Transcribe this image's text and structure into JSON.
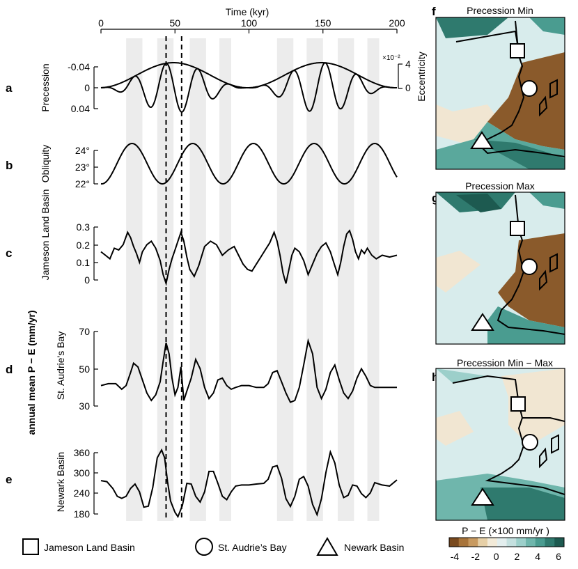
{
  "figure": {
    "panel_letters": {
      "a": "a",
      "b": "b",
      "c": "c",
      "d": "d",
      "e": "e",
      "f": "f",
      "g": "g",
      "h": "h"
    },
    "common_ylabel": "annual mean P − E (mm/yr)"
  },
  "chart_data": [
    {
      "type": "line",
      "panel": "a",
      "title": "",
      "xlabel": "Time (kyr)",
      "xlim": [
        0,
        200
      ],
      "xticks": [
        "0",
        "50",
        "100",
        "150",
        "200"
      ],
      "ylabel": "Precession",
      "yticks": [
        "-0.04",
        "0",
        "0.04"
      ],
      "ylim": [
        0.05,
        -0.05
      ],
      "right_axis": {
        "label": "Eccentricity",
        "multiplier": "×10⁻²",
        "ticks": [
          "4",
          "0"
        ]
      },
      "series": [
        {
          "kind": "precession",
          "period_kyr": 21,
          "amplitude_max": 0.048
        },
        {
          "kind": "eccentricity_envelope",
          "period_kyr": 100,
          "range": [
            0,
            0.048
          ]
        }
      ],
      "shaded_bands_kyr": [
        [
          17,
          28
        ],
        [
          38,
          49
        ],
        [
          60,
          71
        ],
        [
          80,
          88
        ],
        [
          119,
          130
        ],
        [
          139,
          150
        ],
        [
          160,
          171
        ],
        [
          180,
          188
        ]
      ],
      "dashed_lines_kyr": [
        44,
        54.5
      ]
    },
    {
      "type": "line",
      "panel": "b",
      "ylabel": "Obliquity",
      "yticks": [
        "24°",
        "23°",
        "22°"
      ],
      "ylim": [
        21.9,
        24.6
      ],
      "series": [
        {
          "kind": "obliquity",
          "period_kyr": 41,
          "min": 22.0,
          "max": 24.5,
          "peak_kyr": [
            21,
            62,
            103,
            144,
            185
          ]
        }
      ]
    },
    {
      "type": "line",
      "panel": "c",
      "ylabel": "Jameson Land Basin",
      "yticks": [
        "0.3",
        "0.2",
        "0.1",
        "0"
      ],
      "ylim": [
        -0.02,
        0.32
      ],
      "series": [
        {
          "name": "Jameson Land Basin",
          "x": [
            0,
            3,
            6,
            9,
            12,
            15,
            18,
            20,
            22,
            24,
            26,
            28,
            31,
            34,
            37,
            40,
            42,
            44,
            46,
            48,
            50,
            52,
            54,
            56,
            58,
            60,
            63,
            66,
            70,
            74,
            78,
            82,
            86,
            90,
            93,
            96,
            99,
            102,
            105,
            108,
            111,
            114,
            117,
            119,
            121,
            123,
            125,
            127,
            129,
            131,
            134,
            137,
            140,
            143,
            146,
            149,
            152,
            155,
            158,
            160,
            162,
            164,
            166,
            168,
            170,
            172,
            174,
            176,
            178,
            180,
            183,
            186,
            190,
            195,
            200
          ],
          "y": [
            0.16,
            0.14,
            0.12,
            0.18,
            0.17,
            0.2,
            0.27,
            0.24,
            0.19,
            0.15,
            0.1,
            0.16,
            0.2,
            0.22,
            0.18,
            0.11,
            0.03,
            -0.02,
            0.06,
            0.12,
            0.17,
            0.22,
            0.27,
            0.22,
            0.13,
            0.06,
            0.02,
            0.08,
            0.19,
            0.22,
            0.2,
            0.14,
            0.17,
            0.19,
            0.14,
            0.09,
            0.06,
            0.05,
            0.09,
            0.13,
            0.17,
            0.21,
            0.27,
            0.22,
            0.14,
            0.04,
            -0.02,
            0.06,
            0.14,
            0.18,
            0.16,
            0.11,
            0.03,
            0.09,
            0.15,
            0.19,
            0.21,
            0.16,
            0.08,
            0.03,
            0.1,
            0.19,
            0.26,
            0.28,
            0.23,
            0.16,
            0.12,
            0.17,
            0.15,
            0.18,
            0.14,
            0.12,
            0.14,
            0.13,
            0.14
          ]
        }
      ]
    },
    {
      "type": "line",
      "panel": "d",
      "ylabel": "St. Audrie's Bay",
      "yticks": [
        "70",
        "50",
        "30"
      ],
      "ylim": [
        30,
        70
      ],
      "series": [
        {
          "name": "St. Audrie's Bay",
          "x": [
            0,
            5,
            10,
            14,
            17,
            20,
            22,
            25,
            28,
            31,
            34,
            37,
            40,
            42,
            44,
            46,
            48,
            50,
            52,
            54,
            56,
            58,
            61,
            64,
            67,
            70,
            73,
            76,
            79,
            82,
            85,
            88,
            91,
            95,
            100,
            105,
            110,
            113,
            116,
            119,
            122,
            125,
            128,
            131,
            134,
            137,
            140,
            143,
            146,
            149,
            152,
            155,
            158,
            161,
            164,
            167,
            170,
            173,
            176,
            179,
            182,
            185,
            190,
            195,
            200
          ],
          "y": [
            41,
            42,
            42,
            39,
            41,
            48,
            53,
            51,
            44,
            37,
            33,
            36,
            43,
            54,
            64,
            58,
            45,
            36,
            40,
            51,
            33,
            38,
            45,
            55,
            50,
            40,
            34,
            37,
            44,
            45,
            41,
            39,
            40,
            41,
            41,
            40,
            40,
            42,
            48,
            49,
            43,
            37,
            32,
            33,
            40,
            52,
            65,
            58,
            40,
            34,
            39,
            48,
            52,
            44,
            37,
            34,
            38,
            45,
            50,
            46,
            41,
            40,
            40,
            40,
            40
          ]
        }
      ]
    },
    {
      "type": "line",
      "panel": "e",
      "ylabel": "Newark Basin",
      "yticks": [
        "360",
        "300",
        "240",
        "180"
      ],
      "ylim": [
        170,
        375
      ],
      "series": [
        {
          "name": "Newark Basin",
          "x": [
            0,
            4,
            8,
            11,
            14,
            17,
            20,
            23,
            26,
            29,
            32,
            35,
            38,
            41,
            43,
            45,
            47,
            50,
            52,
            55,
            58,
            61,
            64,
            67,
            70,
            73,
            76,
            79,
            82,
            85,
            88,
            91,
            95,
            100,
            105,
            110,
            113,
            116,
            119,
            122,
            125,
            128,
            131,
            134,
            137,
            140,
            143,
            146,
            149,
            152,
            155,
            158,
            161,
            164,
            167,
            170,
            173,
            176,
            179,
            182,
            185,
            190,
            195,
            200
          ],
          "y": [
            278,
            275,
            255,
            232,
            226,
            232,
            255,
            268,
            245,
            200,
            203,
            258,
            345,
            368,
            345,
            275,
            218,
            185,
            172,
            205,
            270,
            268,
            232,
            215,
            245,
            305,
            305,
            270,
            232,
            222,
            245,
            262,
            265,
            265,
            268,
            270,
            282,
            318,
            322,
            285,
            225,
            202,
            232,
            282,
            290,
            262,
            208,
            178,
            225,
            302,
            362,
            330,
            265,
            228,
            235,
            265,
            262,
            240,
            228,
            242,
            272,
            265,
            262,
            280
          ]
        }
      ]
    },
    {
      "type": "heatmap",
      "panel": "f",
      "title": "Precession Min"
    },
    {
      "type": "heatmap",
      "panel": "g",
      "title": "Precession Max"
    },
    {
      "type": "heatmap",
      "panel": "h",
      "title": "Precession Min − Max",
      "colorbar": {
        "label": "P − E (×100 mm/yr )",
        "ticks": [
          "-4",
          "-2",
          "0",
          "2",
          "4",
          "6"
        ]
      }
    }
  ],
  "legend": {
    "items": [
      {
        "symbol": "square",
        "label": "Jameson Land Basin"
      },
      {
        "symbol": "circle",
        "label": "St. Audrie’s Bay"
      },
      {
        "symbol": "triangle",
        "label": "Newark Basin"
      }
    ]
  },
  "colors": {
    "band": "#ececec",
    "colorbar": [
      "#7a4a1e",
      "#a8743a",
      "#c89a60",
      "#e6cfa6",
      "#f2ead8",
      "#e3eeee",
      "#c4e0df",
      "#9ccfca",
      "#6fb6ac",
      "#4a9c90",
      "#2f7a6e",
      "#1d5a50"
    ],
    "sea_light": "#d8ecec",
    "land_brown": "#8a5a2b",
    "land_beige": "#f1e6d2"
  }
}
